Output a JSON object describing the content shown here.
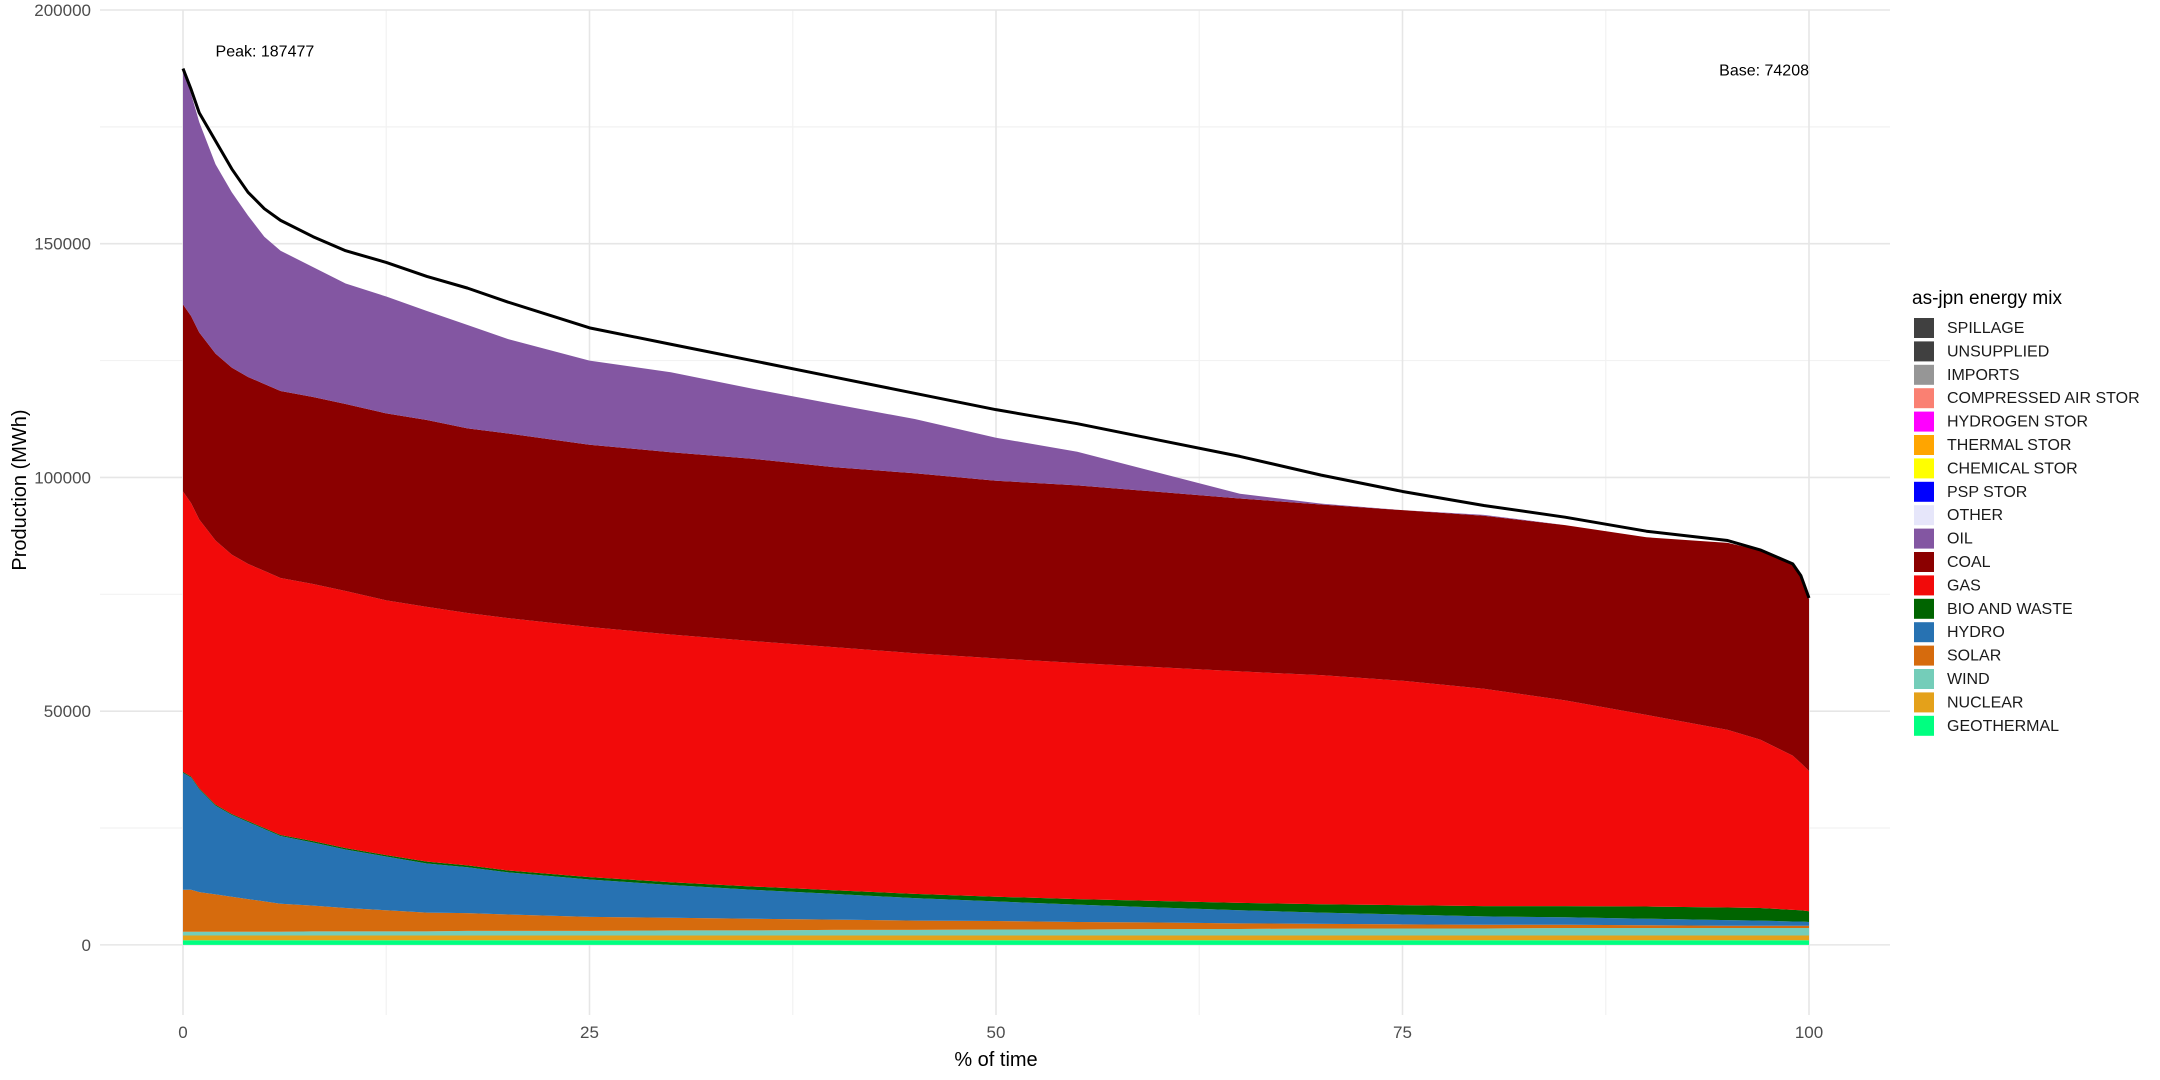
{
  "chart_data": {
    "type": "area",
    "title": "",
    "xlabel": "% of time",
    "ylabel": "Production (MWh)",
    "xlim": [
      0,
      100
    ],
    "ylim": [
      -15000,
      200000
    ],
    "x_ticks": [
      0,
      25,
      50,
      75,
      100
    ],
    "y_ticks": [
      0,
      50000,
      100000,
      150000,
      200000
    ],
    "grid": true,
    "legend": {
      "title": "as-jpn energy mix",
      "position": "right",
      "entries": [
        {
          "label": "SPILLAGE",
          "color": "#404040"
        },
        {
          "label": "UNSUPPLIED",
          "color": "#404040"
        },
        {
          "label": "IMPORTS",
          "color": "#969696"
        },
        {
          "label": "COMPRESSED AIR STOR",
          "color": "#fa8072"
        },
        {
          "label": "HYDROGEN STOR",
          "color": "#ff00ff"
        },
        {
          "label": "THERMAL STOR",
          "color": "#ffa500"
        },
        {
          "label": "CHEMICAL STOR",
          "color": "#ffff00"
        },
        {
          "label": "PSP STOR",
          "color": "#0000ff"
        },
        {
          "label": "OTHER",
          "color": "#e6e6fa"
        },
        {
          "label": "OIL",
          "color": "#8356a2"
        },
        {
          "label": "COAL",
          "color": "#8b0000"
        },
        {
          "label": "GAS",
          "color": "#f20a0a"
        },
        {
          "label": "BIO AND WASTE",
          "color": "#006400"
        },
        {
          "label": "HYDRO",
          "color": "#2772b2"
        },
        {
          "label": "SOLAR",
          "color": "#d66b0d"
        },
        {
          "label": "WIND",
          "color": "#74cdb9"
        },
        {
          "label": "NUCLEAR",
          "color": "#e4a11a"
        },
        {
          "label": "GEOTHERMAL",
          "color": "#00ff80"
        }
      ]
    },
    "annotations": [
      {
        "text": "Peak: 187477",
        "x": 2,
        "y": 190000
      },
      {
        "text": "Base: 74208",
        "x": 100,
        "y": 186000
      }
    ],
    "x": [
      0,
      0.5,
      1,
      2,
      3,
      4,
      5,
      6,
      8,
      10,
      12.5,
      15,
      17.5,
      20,
      25,
      30,
      35,
      40,
      45,
      50,
      55,
      60,
      65,
      70,
      75,
      80,
      85,
      90,
      95,
      97,
      98,
      99,
      99.5,
      100
    ],
    "load_curve": [
      187477,
      183000,
      178000,
      172000,
      166000,
      161000,
      157500,
      155000,
      151500,
      148500,
      146000,
      143000,
      140500,
      137500,
      132000,
      128500,
      125000,
      121500,
      118000,
      114500,
      111500,
      108000,
      104500,
      100500,
      97000,
      94000,
      91500,
      88500,
      86500,
      84500,
      83000,
      81500,
      79000,
      74208
    ],
    "series": [
      {
        "name": "GEOTHERMAL",
        "values": [
          1000,
          1000,
          1000,
          1000,
          1000,
          1000,
          1000,
          1000,
          1000,
          1000,
          1000,
          1000,
          1000,
          1000,
          1000,
          1000,
          1000,
          1000,
          1000,
          1000,
          1000,
          1000,
          1000,
          1000,
          1000,
          1000,
          1000,
          1000,
          1000,
          1000,
          1000,
          1000,
          1000,
          1000
        ]
      },
      {
        "name": "NUCLEAR",
        "values": [
          1000,
          1000,
          1000,
          1000,
          1000,
          1000,
          1000,
          1000,
          1000,
          1000,
          1000,
          1000,
          1000,
          1000,
          1000,
          1000,
          1000,
          1000,
          1000,
          1000,
          1000,
          1000,
          1000,
          1000,
          1000,
          1000,
          1000,
          1000,
          1000,
          1000,
          1000,
          1000,
          1000,
          1000
        ]
      },
      {
        "name": "WIND",
        "values": [
          800,
          800,
          800,
          800,
          800,
          800,
          800,
          800,
          900,
          900,
          900,
          900,
          1000,
          1000,
          1000,
          1100,
          1100,
          1200,
          1200,
          1300,
          1300,
          1400,
          1400,
          1500,
          1500,
          1500,
          1600,
          1600,
          1600,
          1600,
          1600,
          1600,
          1600,
          1600
        ]
      },
      {
        "name": "SOLAR",
        "values": [
          9000,
          9000,
          8500,
          8000,
          7500,
          7000,
          6500,
          6000,
          5500,
          5000,
          4500,
          4000,
          3800,
          3500,
          3000,
          2700,
          2500,
          2200,
          2000,
          1800,
          1600,
          1400,
          1200,
          1000,
          900,
          800,
          700,
          600,
          500,
          500,
          500,
          500,
          500,
          500
        ]
      },
      {
        "name": "HYDRO",
        "values": [
          25000,
          24000,
          22000,
          19000,
          17500,
          16500,
          15500,
          14500,
          13500,
          12500,
          11500,
          10500,
          9800,
          9000,
          8000,
          7000,
          6200,
          5500,
          4800,
          4200,
          3700,
          3200,
          2800,
          2400,
          2100,
          1800,
          1600,
          1400,
          1200,
          1100,
          1000,
          900,
          900,
          800
        ]
      },
      {
        "name": "BIO AND WASTE",
        "values": [
          200,
          200,
          200,
          200,
          200,
          200,
          200,
          200,
          300,
          300,
          300,
          400,
          400,
          400,
          500,
          600,
          700,
          800,
          900,
          1000,
          1200,
          1400,
          1600,
          1800,
          2000,
          2200,
          2400,
          2600,
          2700,
          2700,
          2600,
          2500,
          2400,
          2300
        ]
      },
      {
        "name": "GAS",
        "values": [
          60000,
          58500,
          57500,
          56500,
          55500,
          55000,
          55000,
          55000,
          55000,
          55000,
          54500,
          54500,
          54000,
          54000,
          53500,
          53000,
          52500,
          52000,
          51500,
          51000,
          50500,
          50000,
          49500,
          49000,
          48000,
          46500,
          44000,
          41000,
          38000,
          36000,
          34500,
          33000,
          31500,
          30000
        ]
      },
      {
        "name": "COAL",
        "values": [
          40000,
          40000,
          40000,
          40000,
          40000,
          40000,
          40000,
          40000,
          40000,
          40000,
          40000,
          40000,
          39500,
          39500,
          39000,
          39000,
          39000,
          38500,
          38500,
          38000,
          38000,
          37500,
          37000,
          36500,
          36500,
          37000,
          37500,
          38000,
          40000,
          40500,
          40800,
          40900,
          39600,
          36808
        ]
      },
      {
        "name": "OIL",
        "values": [
          50477,
          47500,
          45000,
          40500,
          37500,
          34500,
          31500,
          30000,
          27800,
          25800,
          25000,
          23300,
          22100,
          20200,
          18000,
          17100,
          15000,
          13500,
          11600,
          9200,
          7200,
          4100,
          1000,
          200,
          0,
          200,
          0,
          0,
          0,
          0,
          0,
          0,
          0,
          0
        ]
      }
    ]
  }
}
